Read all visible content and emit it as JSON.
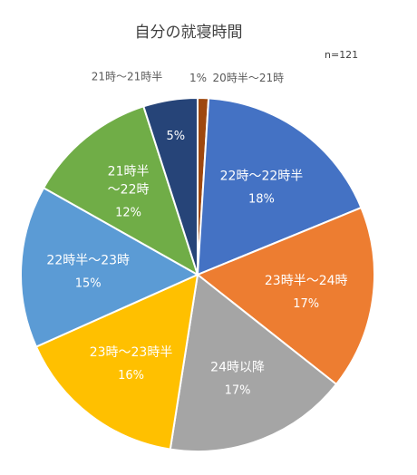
{
  "chart_data": {
    "type": "pie",
    "title": "自分の就寝時間",
    "note": "n=121",
    "slices": [
      {
        "label": "20時半～21時",
        "label_lines": [
          "20時半～21時"
        ],
        "value": 1,
        "value_label": "1%",
        "color": "#9E480E",
        "label_position": "outside"
      },
      {
        "label": "22時～22時半",
        "label_lines": [
          "22時～22時半"
        ],
        "value": 18,
        "value_label": "18%",
        "color": "#4472C4",
        "label_position": "inside"
      },
      {
        "label": "23時半～24時",
        "label_lines": [
          "23時半～24時"
        ],
        "value": 17,
        "value_label": "17%",
        "color": "#ED7D31",
        "label_position": "inside"
      },
      {
        "label": "24時以降",
        "label_lines": [
          "24時以降"
        ],
        "value": 17,
        "value_label": "17%",
        "color": "#A5A5A5",
        "label_position": "inside"
      },
      {
        "label": "23時～23時半",
        "label_lines": [
          "23時～23時半"
        ],
        "value": 16,
        "value_label": "16%",
        "color": "#FFC000",
        "label_position": "inside"
      },
      {
        "label": "22時半～23時",
        "label_lines": [
          "22時半～23時"
        ],
        "value": 15,
        "value_label": "15%",
        "color": "#5B9BD5",
        "label_position": "inside"
      },
      {
        "label": "21時半～22時",
        "label_lines": [
          "21時半",
          "～22時"
        ],
        "value": 12,
        "value_label": "12%",
        "color": "#70AD47",
        "label_position": "inside"
      },
      {
        "label": "21時～21時半",
        "label_lines": [
          "21時～21時半"
        ],
        "value": 5,
        "value_label": "5%",
        "color": "#264478",
        "label_position": "outside"
      }
    ]
  }
}
